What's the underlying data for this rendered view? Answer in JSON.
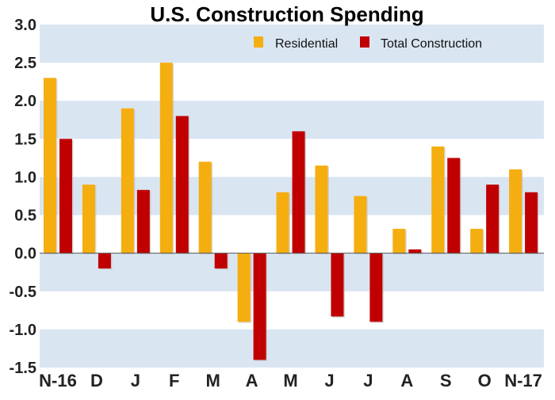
{
  "chart_data": {
    "type": "bar",
    "title": "U.S. Construction Spending",
    "xlabel": "",
    "ylabel": "",
    "categories": [
      "N-16",
      "D",
      "J",
      "F",
      "M",
      "A",
      "M",
      "J",
      "J",
      "A",
      "S",
      "O",
      "N-17"
    ],
    "series": [
      {
        "name": "Residential",
        "color": "#F5AE10",
        "values": [
          2.3,
          0.9,
          1.9,
          2.5,
          1.2,
          -0.9,
          0.8,
          1.15,
          0.75,
          0.32,
          1.4,
          0.32,
          1.1
        ]
      },
      {
        "name": "Total Construction",
        "color": "#C00000",
        "values": [
          1.5,
          -0.2,
          0.83,
          1.8,
          -0.2,
          -1.4,
          1.6,
          -0.83,
          -0.9,
          0.05,
          1.25,
          0.9,
          0.8
        ]
      }
    ],
    "ylim": [
      -1.5,
      3.0
    ],
    "yticks": [
      "3.0",
      "2.5",
      "2.0",
      "1.5",
      "1.0",
      "0.5",
      "0.0",
      "-0.5",
      "-1.0",
      "-1.5"
    ],
    "grid": "alternating horizontal bands",
    "band_color": "#DAE5F2",
    "legend_position": "top-right"
  }
}
